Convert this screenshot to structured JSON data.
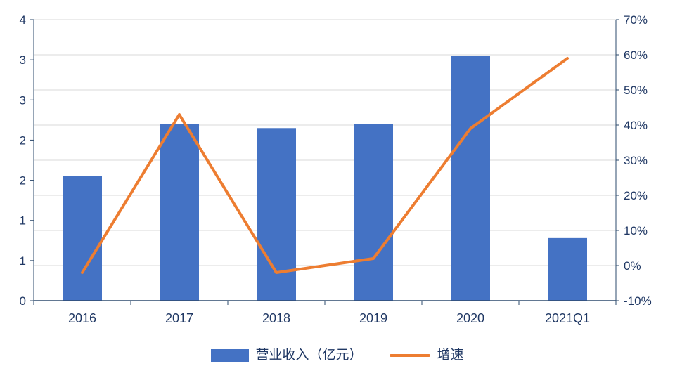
{
  "chart_data": {
    "type": "combo",
    "title": "",
    "categories": [
      "2016",
      "2017",
      "2018",
      "2019",
      "2020",
      "2021Q1"
    ],
    "series": [
      {
        "name": "营业收入（亿元）",
        "type": "bar",
        "axis": "left",
        "values": [
          1.55,
          2.2,
          2.15,
          2.2,
          3.05,
          0.78
        ]
      },
      {
        "name": "增速",
        "type": "line",
        "axis": "right",
        "values_percent": [
          -2,
          43,
          -2,
          2,
          39,
          59
        ]
      }
    ],
    "left_axis": {
      "min": 0,
      "max": 3.5,
      "tick_values": [
        0,
        0.5,
        1,
        1.5,
        2,
        2.5,
        3,
        3.5
      ],
      "tick_labels": [
        "0",
        "1",
        "1",
        "2",
        "2",
        "3",
        "3",
        "4"
      ]
    },
    "right_axis": {
      "min": -10,
      "max": 70,
      "tick_step": 10,
      "tick_labels": [
        "-10%",
        "0%",
        "10%",
        "20%",
        "30%",
        "40%",
        "50%",
        "60%",
        "70%"
      ]
    },
    "grid": true,
    "legend_position": "bottom",
    "colors": {
      "bar": "#4472C4",
      "line": "#ED7D31",
      "axis_text": "#203864",
      "gridline": "#D9D9D9",
      "axis_line": "#2E4B6E",
      "background": "#FFFFFF"
    }
  },
  "legend": {
    "bar_label": "营业收入（亿元）",
    "line_label": "增速"
  }
}
